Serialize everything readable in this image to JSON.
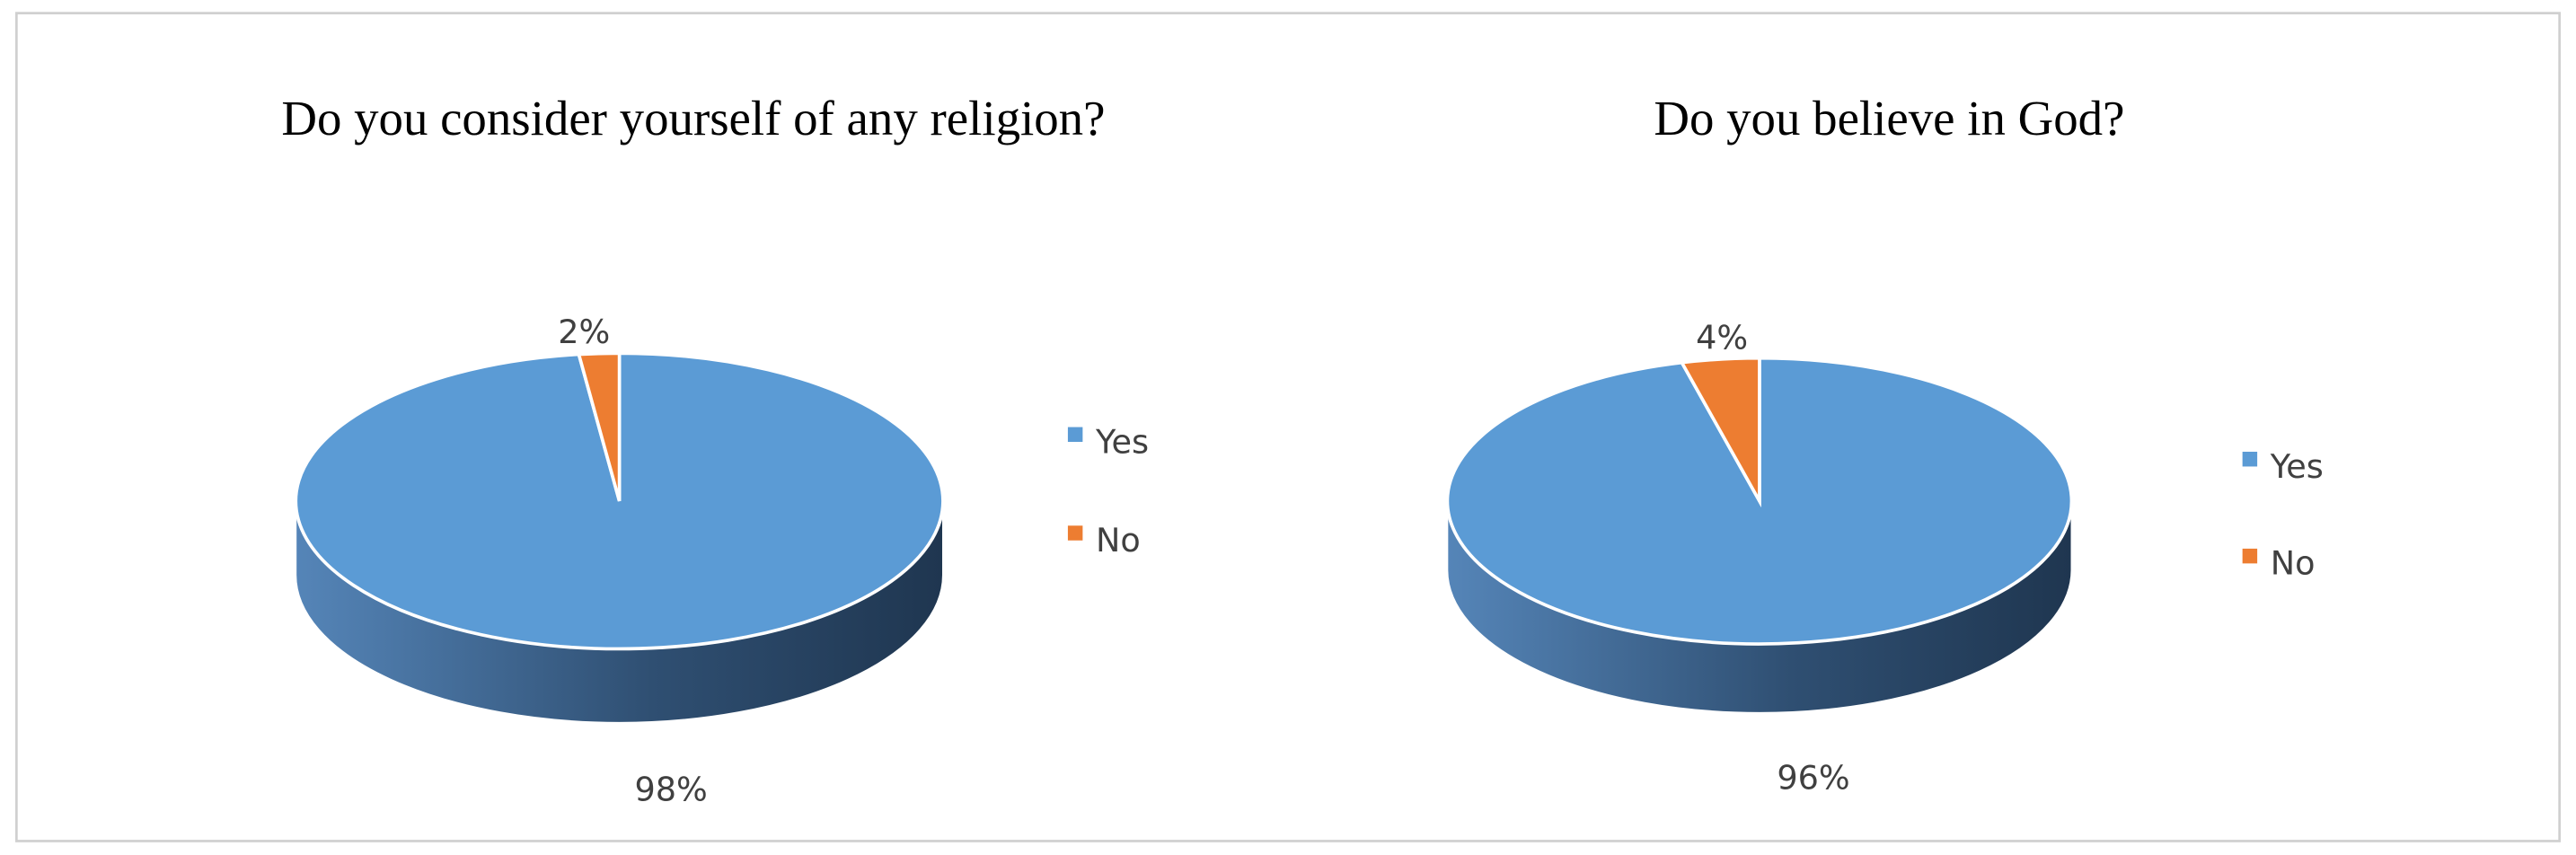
{
  "chart_data": [
    {
      "type": "pie",
      "title": "Do you consider yourself of any religion?",
      "categories": [
        "Yes",
        "No"
      ],
      "values": [
        98,
        2
      ],
      "value_labels": [
        "98%",
        "2%"
      ],
      "colors": [
        "#5b9bd5",
        "#ed7d31"
      ],
      "legend": "right"
    },
    {
      "type": "pie",
      "title": "Do you believe in God?",
      "categories": [
        "Yes",
        "No"
      ],
      "values": [
        96,
        4
      ],
      "value_labels": [
        "96%",
        "4%"
      ],
      "colors": [
        "#5b9bd5",
        "#ed7d31"
      ],
      "legend": "right"
    }
  ]
}
